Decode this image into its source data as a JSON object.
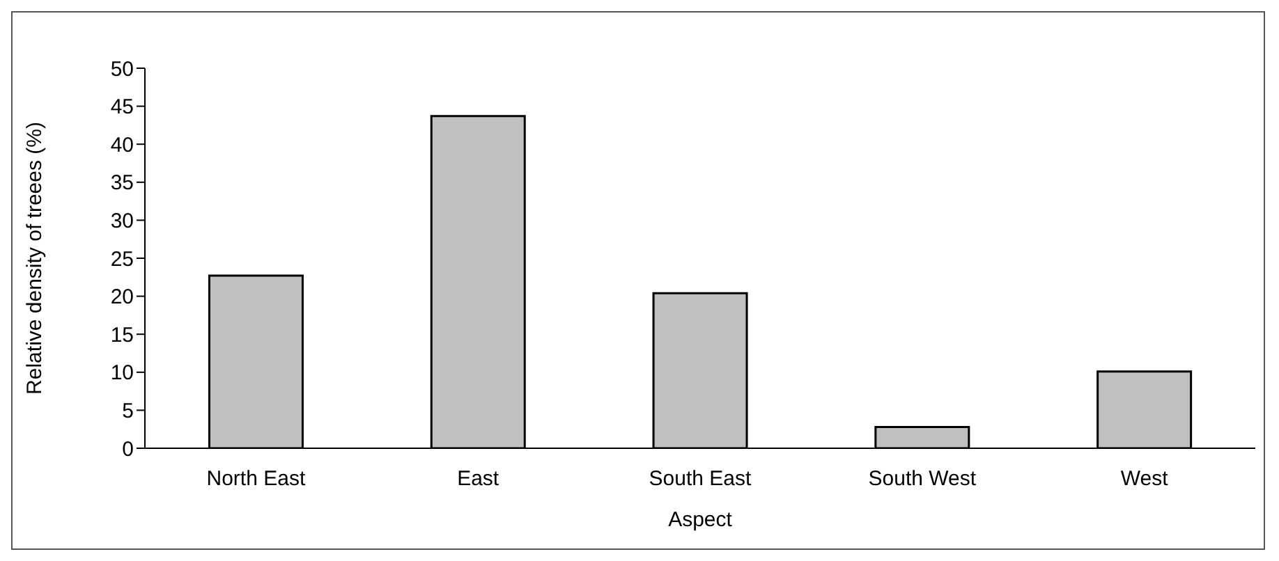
{
  "chart_data": {
    "type": "bar",
    "xlabel": "Aspect",
    "ylabel": "Relative density of treees (%)",
    "categories": [
      "North East",
      "East",
      "South East",
      "South West",
      "West"
    ],
    "values": [
      22.7,
      43.7,
      20.4,
      2.8,
      10.1
    ],
    "color": "#c0c0c0",
    "ylim": [
      0,
      50
    ],
    "yticks": [
      0,
      5,
      10,
      15,
      20,
      25,
      30,
      35,
      40,
      45,
      50
    ],
    "grid": false,
    "legend": false
  }
}
